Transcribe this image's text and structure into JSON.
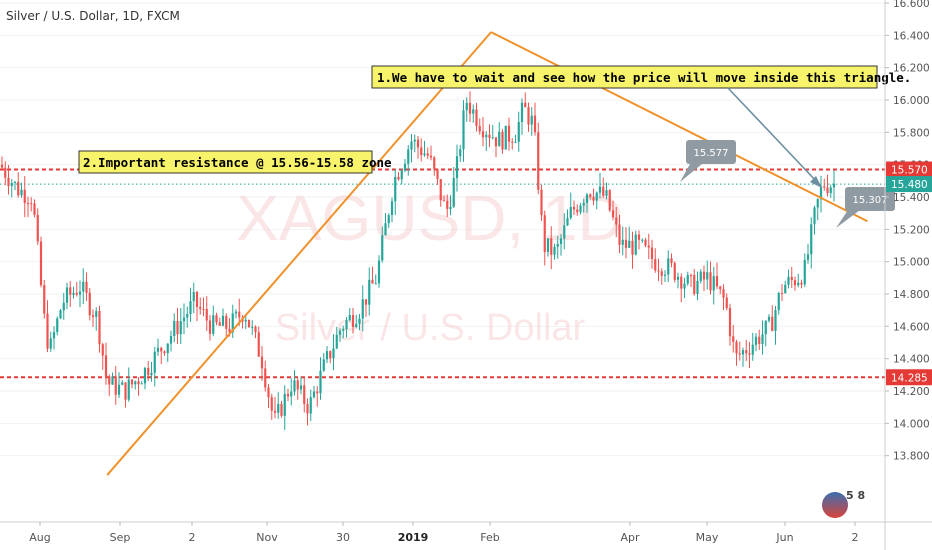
{
  "header": {
    "title": "Silver / U.S. Dollar, 1D, FXCM"
  },
  "watermark": {
    "symbol": "XAGUSD, 1D",
    "name": "Silver / U.S. Dollar"
  },
  "annotations": {
    "note1": "1.We have to wait and see how the price will move inside this triangle.",
    "note2": "2.Important resistance @ 15.56-15.58 zone",
    "callout_upper": "15.577",
    "callout_lower": "15.307"
  },
  "price_badges": [
    {
      "value": "15.570",
      "color": "#e53935"
    },
    {
      "value": "15.480",
      "color": "#26a69a"
    },
    {
      "value": "14.285",
      "color": "#e53935"
    }
  ],
  "logo_text": "5 8",
  "colors": {
    "up": "#26a69a",
    "down": "#ef5350",
    "trendline": "#f0922b",
    "level": "#e53935",
    "callout": "#8f9aa3",
    "arrow": "#6d8fa3",
    "note_bg": "#f7f36a"
  },
  "chart_data": {
    "type": "candlestick",
    "title": "Silver / U.S. Dollar, 1D, FXCM",
    "ylim": [
      13.6,
      16.6
    ],
    "y_ticks": [
      "16.600",
      "16.400",
      "16.200",
      "16.000",
      "15.800",
      "15.600",
      "15.400",
      "15.200",
      "15.000",
      "14.800",
      "14.600",
      "14.400",
      "14.200",
      "14.000",
      "13.800"
    ],
    "x_ticks": [
      {
        "label": "Aug",
        "bold": false
      },
      {
        "label": "Sep",
        "bold": false
      },
      {
        "label": "2",
        "bold": false
      },
      {
        "label": "Nov",
        "bold": false
      },
      {
        "label": "30",
        "bold": false
      },
      {
        "label": "2019",
        "bold": true
      },
      {
        "label": "Feb",
        "bold": false
      },
      {
        "label": "Apr",
        "bold": false
      },
      {
        "label": "May",
        "bold": false
      },
      {
        "label": "Jun",
        "bold": false
      },
      {
        "label": "2",
        "bold": false
      }
    ],
    "x_range": [
      "2018-07-26",
      "2019-07-10"
    ],
    "horizontal_levels": [
      {
        "price": 15.57,
        "color": "#e53935",
        "style": "dashed"
      },
      {
        "price": 14.285,
        "color": "#e53935",
        "style": "dashed"
      },
      {
        "price": 15.48,
        "color": "#26a69a",
        "style": "dotted"
      }
    ],
    "trendlines": [
      {
        "from": [
          "2018-09-07",
          13.68
        ],
        "to": [
          "2019-02-08",
          16.42
        ]
      },
      {
        "from": [
          "2019-02-08",
          16.42
        ],
        "to": [
          "2019-07-09",
          15.25
        ]
      }
    ],
    "price_path": [
      [
        "2018-07-26",
        15.6
      ],
      [
        "2018-08-02",
        15.45
      ],
      [
        "2018-08-08",
        15.4
      ],
      [
        "2018-08-13",
        14.6
      ],
      [
        "2018-08-15",
        14.45
      ],
      [
        "2018-08-20",
        14.75
      ],
      [
        "2018-08-27",
        14.85
      ],
      [
        "2018-09-03",
        14.65
      ],
      [
        "2018-09-07",
        14.25
      ],
      [
        "2018-09-14",
        14.2
      ],
      [
        "2018-09-21",
        14.3
      ],
      [
        "2018-09-28",
        14.45
      ],
      [
        "2018-10-05",
        14.6
      ],
      [
        "2018-10-12",
        14.75
      ],
      [
        "2018-10-19",
        14.6
      ],
      [
        "2018-10-26",
        14.6
      ],
      [
        "2018-11-01",
        14.7
      ],
      [
        "2018-11-08",
        14.4
      ],
      [
        "2018-11-13",
        14.0
      ],
      [
        "2018-11-20",
        14.25
      ],
      [
        "2018-11-27",
        14.1
      ],
      [
        "2018-12-03",
        14.35
      ],
      [
        "2018-12-10",
        14.6
      ],
      [
        "2018-12-17",
        14.7
      ],
      [
        "2018-12-24",
        14.9
      ],
      [
        "2018-12-31",
        15.5
      ],
      [
        "2019-01-07",
        15.75
      ],
      [
        "2019-01-14",
        15.65
      ],
      [
        "2019-01-21",
        15.3
      ],
      [
        "2019-01-25",
        15.55
      ],
      [
        "2019-01-29",
        16.0
      ],
      [
        "2019-02-04",
        15.85
      ],
      [
        "2019-02-11",
        15.75
      ],
      [
        "2019-02-18",
        15.8
      ],
      [
        "2019-02-21",
        15.95
      ],
      [
        "2019-02-25",
        15.85
      ],
      [
        "2019-03-01",
        15.1
      ],
      [
        "2019-03-06",
        15.05
      ],
      [
        "2019-03-12",
        15.3
      ],
      [
        "2019-03-19",
        15.45
      ],
      [
        "2019-03-26",
        15.4
      ],
      [
        "2019-04-01",
        15.1
      ],
      [
        "2019-04-08",
        15.1
      ],
      [
        "2019-04-15",
        15.0
      ],
      [
        "2019-04-22",
        14.95
      ],
      [
        "2019-04-29",
        14.85
      ],
      [
        "2019-05-06",
        14.9
      ],
      [
        "2019-05-13",
        14.75
      ],
      [
        "2019-05-17",
        14.4
      ],
      [
        "2019-05-24",
        14.5
      ],
      [
        "2019-05-31",
        14.6
      ],
      [
        "2019-06-05",
        14.85
      ],
      [
        "2019-06-11",
        14.9
      ],
      [
        "2019-06-14",
        14.95
      ],
      [
        "2019-06-18",
        15.3
      ],
      [
        "2019-06-21",
        15.48
      ]
    ]
  }
}
